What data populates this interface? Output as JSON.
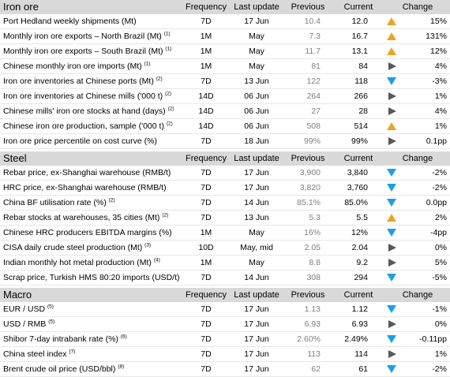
{
  "headers": {
    "frequency": "Frequency",
    "last_update": "Last update",
    "previous": "Previous",
    "current": "Current",
    "change": "Change"
  },
  "sections": [
    {
      "title": "Iron ore",
      "rows": [
        {
          "name": "Port Hedland weekly shipments (Mt)",
          "note": "",
          "freq": "7D",
          "last": "17 Jun",
          "prev": "10.4",
          "cur": "12.0",
          "dir": "up",
          "chg": "15%"
        },
        {
          "name": "Monthly iron ore exports – North Brazil (Mt)",
          "note": "(1)",
          "freq": "1M",
          "last": "May",
          "prev": "7.3",
          "cur": "16.7",
          "dir": "up",
          "chg": "131%"
        },
        {
          "name": "Monthly iron ore exports – South Brazil (Mt)",
          "note": "(1)",
          "freq": "1M",
          "last": "May",
          "prev": "11.7",
          "cur": "13.1",
          "dir": "up",
          "chg": "12%"
        },
        {
          "name": "Chinese monthly iron ore imports (Mt)",
          "note": "(1)",
          "freq": "1M",
          "last": "May",
          "prev": "81",
          "cur": "84",
          "dir": "right",
          "chg": "4%"
        },
        {
          "name": "Iron ore inventories at Chinese ports (Mt)",
          "note": "(2)",
          "freq": "7D",
          "last": "13 Jun",
          "prev": "122",
          "cur": "118",
          "dir": "down",
          "chg": "-3%"
        },
        {
          "name": "Iron ore inventories at Chinese mills ('000 t)",
          "note": "(2)",
          "freq": "14D",
          "last": "06 Jun",
          "prev": "264",
          "cur": "266",
          "dir": "right",
          "chg": "1%"
        },
        {
          "name": "Chinese mills' iron ore stocks at hand (days)",
          "note": "(2)",
          "freq": "14D",
          "last": "06 Jun",
          "prev": "27",
          "cur": "28",
          "dir": "right",
          "chg": "4%"
        },
        {
          "name": "Chinese iron ore production, sample ('000 t)",
          "note": "(2)",
          "freq": "14D",
          "last": "06 Jun",
          "prev": "508",
          "cur": "514",
          "dir": "up",
          "chg": "1%"
        },
        {
          "name": "Iron ore price percentile on cost curve (%)",
          "note": "",
          "freq": "7D",
          "last": "18 Jun",
          "prev": "99%",
          "cur": "99%",
          "dir": "right",
          "chg": "0.1pp"
        }
      ]
    },
    {
      "title": "Steel",
      "rows": [
        {
          "name": "Rebar price, ex-Shanghai warehouse (RMB/t)",
          "note": "",
          "freq": "7D",
          "last": "17 Jun",
          "prev": "3,900",
          "cur": "3,840",
          "dir": "down",
          "chg": "-2%"
        },
        {
          "name": "HRC price, ex-Shanghai warehouse (RMB/t)",
          "note": "",
          "freq": "7D",
          "last": "17 Jun",
          "prev": "3,820",
          "cur": "3,760",
          "dir": "down",
          "chg": "-2%"
        },
        {
          "name": "China BF utilisation rate (%)",
          "note": "(2)",
          "freq": "7D",
          "last": "14 Jun",
          "prev": "85.1%",
          "cur": "85.0%",
          "dir": "down",
          "chg": "0.0pp"
        },
        {
          "name": "Rebar stocks at warehouses, 35 cities (Mt)",
          "note": "(2)",
          "freq": "7D",
          "last": "13 Jun",
          "prev": "5.3",
          "cur": "5.5",
          "dir": "up",
          "chg": "2%"
        },
        {
          "name": "Chinese HRC producers EBITDA margins (%)",
          "note": "",
          "freq": "1M",
          "last": "May",
          "prev": "16%",
          "cur": "12%",
          "dir": "down",
          "chg": "-4pp"
        },
        {
          "name": "CISA daily crude steel production (Mt)",
          "note": "(3)",
          "freq": "10D",
          "last": "May, mid",
          "prev": "2.05",
          "cur": "2.04",
          "dir": "right",
          "chg": "0%"
        },
        {
          "name": "Indian monthly hot metal production (Mt)",
          "note": "(4)",
          "freq": "1M",
          "last": "May",
          "prev": "8.8",
          "cur": "9.2",
          "dir": "right",
          "chg": "5%"
        },
        {
          "name": "Scrap price, Turkish HMS 80:20 imports (USD/t)",
          "note": "",
          "freq": "7D",
          "last": "14 Jun",
          "prev": "308",
          "cur": "294",
          "dir": "down",
          "chg": "-5%"
        }
      ]
    },
    {
      "title": "Macro",
      "rows": [
        {
          "name": "EUR / USD",
          "note": "(5)",
          "freq": "7D",
          "last": "17 Jun",
          "prev": "1.13",
          "cur": "1.12",
          "dir": "down",
          "chg": "-1%"
        },
        {
          "name": "USD / RMB",
          "note": "(5)",
          "freq": "7D",
          "last": "17 Jun",
          "prev": "6.93",
          "cur": "6.93",
          "dir": "right",
          "chg": "0%"
        },
        {
          "name": "Shibor 7-day intrabank rate (%)",
          "note": "(6)",
          "freq": "7D",
          "last": "17 Jun",
          "prev": "2.60%",
          "cur": "2.49%",
          "dir": "down",
          "chg": "-0.11pp"
        },
        {
          "name": "China steel index",
          "note": "(7)",
          "freq": "7D",
          "last": "17 Jun",
          "prev": "113",
          "cur": "114",
          "dir": "right",
          "chg": "1%"
        },
        {
          "name": "Brent crude oil price (USD/bbl)",
          "note": "(8)",
          "freq": "7D",
          "last": "17 Jun",
          "prev": "62",
          "cur": "61",
          "dir": "down",
          "chg": "-2%"
        }
      ]
    }
  ]
}
